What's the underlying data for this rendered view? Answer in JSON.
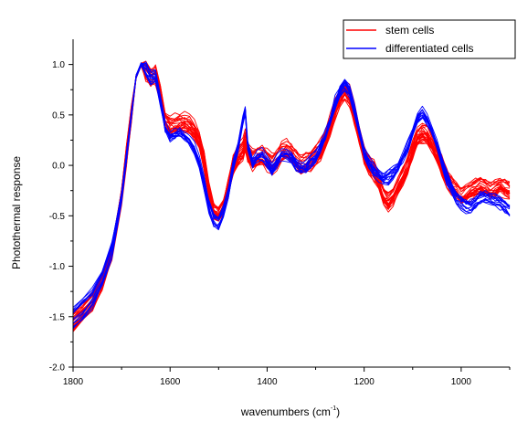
{
  "chart_data": {
    "type": "line",
    "title": "",
    "xlabel_main": "wavenumbers (cm",
    "xlabel_sup": "-1",
    "xlabel_close": ")",
    "ylabel": "Photothermal response",
    "x_reversed": true,
    "xlim": [
      1800,
      900
    ],
    "ylim": [
      -2.0,
      1.25
    ],
    "xticks": [
      1800,
      1600,
      1400,
      1200,
      1000
    ],
    "yticks": [
      -2.0,
      -1.5,
      -1.0,
      -0.5,
      0.0,
      0.5,
      1.0
    ],
    "ytick_labels": [
      "-2.0",
      "-1.5",
      "-1.0",
      "-0.5",
      "0.0",
      "0.5",
      "1.0"
    ],
    "grid": false,
    "legend_position": "top-right",
    "legend": [
      {
        "name": "stem cells",
        "color": "#ff0000"
      },
      {
        "name": "differentiated cells",
        "color": "#0000ff"
      }
    ],
    "x": [
      1800,
      1780,
      1760,
      1740,
      1720,
      1700,
      1690,
      1680,
      1670,
      1660,
      1650,
      1640,
      1630,
      1620,
      1610,
      1600,
      1590,
      1580,
      1570,
      1560,
      1550,
      1540,
      1530,
      1520,
      1510,
      1500,
      1490,
      1480,
      1470,
      1460,
      1450,
      1445,
      1440,
      1430,
      1420,
      1410,
      1400,
      1390,
      1380,
      1370,
      1360,
      1350,
      1340,
      1330,
      1320,
      1310,
      1300,
      1290,
      1280,
      1270,
      1260,
      1250,
      1240,
      1230,
      1220,
      1210,
      1200,
      1190,
      1180,
      1170,
      1160,
      1150,
      1140,
      1130,
      1120,
      1110,
      1100,
      1090,
      1080,
      1070,
      1060,
      1050,
      1040,
      1030,
      1020,
      1010,
      1000,
      990,
      980,
      970,
      960,
      950,
      940,
      930,
      920,
      910,
      900
    ],
    "series": [
      {
        "name": "stem cells",
        "color": "#ff0000",
        "mean": [
          -1.55,
          -1.45,
          -1.35,
          -1.15,
          -0.85,
          -0.3,
          0.1,
          0.5,
          0.88,
          1.0,
          0.95,
          0.88,
          0.9,
          0.7,
          0.45,
          0.38,
          0.4,
          0.42,
          0.42,
          0.4,
          0.35,
          0.25,
          0.05,
          -0.25,
          -0.45,
          -0.48,
          -0.4,
          -0.2,
          0.0,
          0.1,
          0.15,
          0.25,
          0.12,
          0.05,
          0.08,
          0.1,
          0.05,
          0.0,
          0.05,
          0.12,
          0.15,
          0.12,
          0.05,
          0.0,
          0.02,
          0.05,
          0.1,
          0.15,
          0.25,
          0.4,
          0.55,
          0.68,
          0.75,
          0.68,
          0.5,
          0.3,
          0.1,
          0.0,
          -0.05,
          -0.15,
          -0.3,
          -0.35,
          -0.3,
          -0.2,
          -0.1,
          0.0,
          0.15,
          0.28,
          0.32,
          0.3,
          0.22,
          0.12,
          0.0,
          -0.12,
          -0.2,
          -0.25,
          -0.3,
          -0.28,
          -0.25,
          -0.22,
          -0.2,
          -0.22,
          -0.25,
          -0.22,
          -0.2,
          -0.22,
          -0.25
        ],
        "spread": 0.1,
        "count": 24
      },
      {
        "name": "differentiated cells",
        "color": "#0000ff",
        "mean": [
          -1.5,
          -1.4,
          -1.3,
          -1.1,
          -0.82,
          -0.3,
          0.1,
          0.5,
          0.88,
          1.0,
          0.95,
          0.88,
          0.88,
          0.65,
          0.38,
          0.3,
          0.32,
          0.33,
          0.3,
          0.25,
          0.18,
          0.05,
          -0.15,
          -0.38,
          -0.52,
          -0.55,
          -0.45,
          -0.25,
          0.0,
          0.2,
          0.45,
          0.55,
          0.2,
          0.05,
          0.1,
          0.12,
          0.05,
          -0.02,
          0.05,
          0.12,
          0.12,
          0.1,
          0.02,
          -0.02,
          0.0,
          0.05,
          0.1,
          0.2,
          0.3,
          0.45,
          0.62,
          0.75,
          0.82,
          0.75,
          0.55,
          0.35,
          0.15,
          0.05,
          -0.02,
          -0.08,
          -0.12,
          -0.1,
          -0.05,
          0.0,
          0.1,
          0.2,
          0.35,
          0.48,
          0.52,
          0.45,
          0.35,
          0.22,
          0.05,
          -0.1,
          -0.2,
          -0.3,
          -0.35,
          -0.38,
          -0.38,
          -0.35,
          -0.3,
          -0.3,
          -0.32,
          -0.33,
          -0.35,
          -0.38,
          -0.42
        ],
        "spread": 0.08,
        "count": 14
      }
    ]
  }
}
